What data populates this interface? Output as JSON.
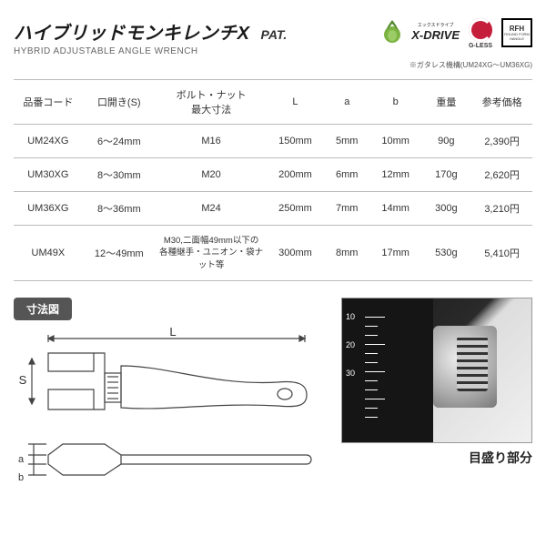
{
  "header": {
    "title_ja": "ハイブリッドモンキレンチX",
    "pat": "PAT.",
    "title_en": "HYBRID ADJUSTABLE ANGLE WRENCH",
    "footnote": "※ガタレス機構(UM24XG～UM36XG)",
    "logos": {
      "xdrive_small": "エックスドライブ",
      "xdrive": "X-DRIVE",
      "gless": "G-LESS",
      "rfh_top": "RFH",
      "rfh_bottom": "ROUND FORM HANDLE"
    }
  },
  "table": {
    "columns": [
      "品番コード",
      "口開き(S)",
      "ボルト・ナット\n最大寸法",
      "L",
      "a",
      "b",
      "重量",
      "参考価格"
    ],
    "col_widths": [
      "68px",
      "72px",
      "110px",
      "56px",
      "46px",
      "50px",
      "50px",
      "60px"
    ],
    "rows": [
      [
        "UM24XG",
        "6～24mm",
        "M16",
        "150mm",
        "5mm",
        "10mm",
        "90g",
        "2,390円"
      ],
      [
        "UM30XG",
        "8～30mm",
        "M20",
        "200mm",
        "6mm",
        "12mm",
        "170g",
        "2,620円"
      ],
      [
        "UM36XG",
        "8～36mm",
        "M24",
        "250mm",
        "7mm",
        "14mm",
        "300g",
        "3,210円"
      ],
      [
        "UM49X",
        "12～49mm",
        "M30,二面幅49mm以下の\n各種継手・ユニオン・袋ナット等",
        "300mm",
        "8mm",
        "17mm",
        "530g",
        "5,410円"
      ]
    ]
  },
  "diagram": {
    "section_label": "寸法図",
    "labels": {
      "L": "L",
      "S": "S",
      "a": "a",
      "b": "b"
    },
    "stroke": "#444444",
    "stroke_width": 1.2
  },
  "photo": {
    "caption": "目盛り部分",
    "ruler_values": [
      "10",
      "20",
      "30"
    ]
  },
  "colors": {
    "text": "#333333",
    "border": "#bbbbbb",
    "section_bg": "#555555",
    "red": "#c41e3a"
  }
}
